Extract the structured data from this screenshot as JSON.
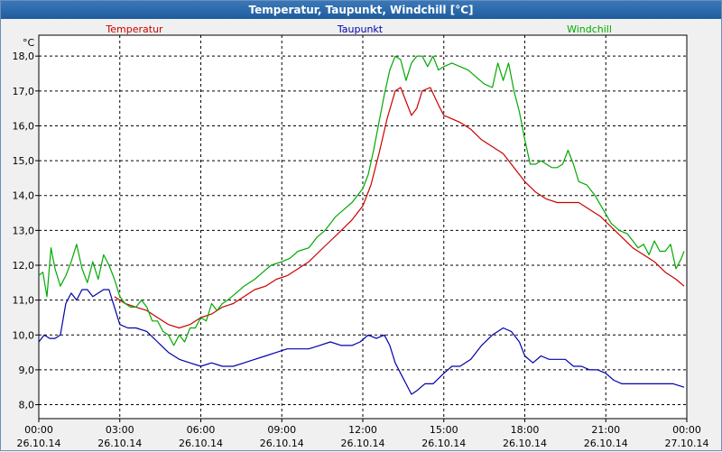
{
  "window": {
    "title": "Temperatur, Taupunkt, Windchill [°C]"
  },
  "chart_data": {
    "type": "line",
    "title": "Temperatur, Taupunkt, Windchill [°C]",
    "ylabel": "°C",
    "xlabel": "",
    "ylim": [
      7.6,
      18.6
    ],
    "xlim": [
      0,
      24
    ],
    "grid": true,
    "legend_position": "top",
    "y_ticks": [
      "8,0",
      "9,0",
      "10,0",
      "11,0",
      "12,0",
      "13,0",
      "14,0",
      "15,0",
      "16,0",
      "17,0",
      "18,0"
    ],
    "x_ticks": [
      {
        "time": "00:00",
        "date": "26.10.14"
      },
      {
        "time": "03:00",
        "date": "26.10.14"
      },
      {
        "time": "06:00",
        "date": "26.10.14"
      },
      {
        "time": "09:00",
        "date": "26.10.14"
      },
      {
        "time": "12:00",
        "date": "26.10.14"
      },
      {
        "time": "15:00",
        "date": "26.10.14"
      },
      {
        "time": "18:00",
        "date": "26.10.14"
      },
      {
        "time": "21:00",
        "date": "26.10.14"
      },
      {
        "time": "00:00",
        "date": "27.10.14"
      }
    ],
    "series": [
      {
        "name": "Temperatur",
        "color": "#cc0000",
        "points": [
          [
            2.8,
            11.1
          ],
          [
            3.2,
            10.9
          ],
          [
            3.6,
            10.8
          ],
          [
            4.0,
            10.7
          ],
          [
            4.4,
            10.5
          ],
          [
            4.8,
            10.3
          ],
          [
            5.2,
            10.2
          ],
          [
            5.6,
            10.3
          ],
          [
            6.0,
            10.5
          ],
          [
            6.4,
            10.6
          ],
          [
            6.8,
            10.8
          ],
          [
            7.2,
            10.9
          ],
          [
            7.6,
            11.1
          ],
          [
            8.0,
            11.3
          ],
          [
            8.4,
            11.4
          ],
          [
            8.8,
            11.6
          ],
          [
            9.2,
            11.7
          ],
          [
            9.6,
            11.9
          ],
          [
            10.0,
            12.1
          ],
          [
            10.4,
            12.4
          ],
          [
            10.8,
            12.7
          ],
          [
            11.2,
            13.0
          ],
          [
            11.6,
            13.3
          ],
          [
            12.0,
            13.7
          ],
          [
            12.3,
            14.3
          ],
          [
            12.6,
            15.2
          ],
          [
            12.9,
            16.2
          ],
          [
            13.2,
            17.0
          ],
          [
            13.4,
            17.1
          ],
          [
            13.6,
            16.7
          ],
          [
            13.8,
            16.3
          ],
          [
            14.0,
            16.5
          ],
          [
            14.2,
            17.0
          ],
          [
            14.5,
            17.1
          ],
          [
            14.8,
            16.6
          ],
          [
            15.0,
            16.3
          ],
          [
            15.3,
            16.2
          ],
          [
            15.6,
            16.1
          ],
          [
            16.0,
            15.9
          ],
          [
            16.4,
            15.6
          ],
          [
            16.8,
            15.4
          ],
          [
            17.2,
            15.2
          ],
          [
            17.6,
            14.8
          ],
          [
            18.0,
            14.4
          ],
          [
            18.4,
            14.1
          ],
          [
            18.8,
            13.9
          ],
          [
            19.2,
            13.8
          ],
          [
            19.6,
            13.8
          ],
          [
            20.0,
            13.8
          ],
          [
            20.4,
            13.6
          ],
          [
            20.8,
            13.4
          ],
          [
            21.2,
            13.1
          ],
          [
            21.6,
            12.8
          ],
          [
            22.0,
            12.5
          ],
          [
            22.4,
            12.3
          ],
          [
            22.8,
            12.1
          ],
          [
            23.2,
            11.8
          ],
          [
            23.6,
            11.6
          ],
          [
            23.9,
            11.4
          ]
        ]
      },
      {
        "name": "Taupunkt",
        "color": "#0000aa",
        "points": [
          [
            0.0,
            9.8
          ],
          [
            0.2,
            10.0
          ],
          [
            0.4,
            9.9
          ],
          [
            0.6,
            9.9
          ],
          [
            0.8,
            10.0
          ],
          [
            1.0,
            10.9
          ],
          [
            1.2,
            11.2
          ],
          [
            1.4,
            11.0
          ],
          [
            1.6,
            11.3
          ],
          [
            1.8,
            11.3
          ],
          [
            2.0,
            11.1
          ],
          [
            2.2,
            11.2
          ],
          [
            2.4,
            11.3
          ],
          [
            2.6,
            11.3
          ],
          [
            2.8,
            10.8
          ],
          [
            3.0,
            10.3
          ],
          [
            3.3,
            10.2
          ],
          [
            3.6,
            10.2
          ],
          [
            4.0,
            10.1
          ],
          [
            4.4,
            9.8
          ],
          [
            4.8,
            9.5
          ],
          [
            5.2,
            9.3
          ],
          [
            5.6,
            9.2
          ],
          [
            6.0,
            9.1
          ],
          [
            6.4,
            9.2
          ],
          [
            6.8,
            9.1
          ],
          [
            7.2,
            9.1
          ],
          [
            7.6,
            9.2
          ],
          [
            8.0,
            9.3
          ],
          [
            8.4,
            9.4
          ],
          [
            8.8,
            9.5
          ],
          [
            9.2,
            9.6
          ],
          [
            9.6,
            9.6
          ],
          [
            10.0,
            9.6
          ],
          [
            10.4,
            9.7
          ],
          [
            10.8,
            9.8
          ],
          [
            11.2,
            9.7
          ],
          [
            11.6,
            9.7
          ],
          [
            11.9,
            9.8
          ],
          [
            12.2,
            10.0
          ],
          [
            12.5,
            9.9
          ],
          [
            12.8,
            10.0
          ],
          [
            13.0,
            9.7
          ],
          [
            13.2,
            9.2
          ],
          [
            13.4,
            8.9
          ],
          [
            13.6,
            8.6
          ],
          [
            13.8,
            8.3
          ],
          [
            14.0,
            8.4
          ],
          [
            14.3,
            8.6
          ],
          [
            14.6,
            8.6
          ],
          [
            15.0,
            8.9
          ],
          [
            15.3,
            9.1
          ],
          [
            15.6,
            9.1
          ],
          [
            16.0,
            9.3
          ],
          [
            16.4,
            9.7
          ],
          [
            16.8,
            10.0
          ],
          [
            17.2,
            10.2
          ],
          [
            17.5,
            10.1
          ],
          [
            17.8,
            9.8
          ],
          [
            18.0,
            9.4
          ],
          [
            18.3,
            9.2
          ],
          [
            18.6,
            9.4
          ],
          [
            18.9,
            9.3
          ],
          [
            19.2,
            9.3
          ],
          [
            19.5,
            9.3
          ],
          [
            19.8,
            9.1
          ],
          [
            20.1,
            9.1
          ],
          [
            20.4,
            9.0
          ],
          [
            20.7,
            9.0
          ],
          [
            21.0,
            8.9
          ],
          [
            21.3,
            8.7
          ],
          [
            21.6,
            8.6
          ],
          [
            22.0,
            8.6
          ],
          [
            22.5,
            8.6
          ],
          [
            23.0,
            8.6
          ],
          [
            23.5,
            8.6
          ],
          [
            23.9,
            8.5
          ]
        ]
      },
      {
        "name": "Windchill",
        "color": "#00aa00",
        "points": [
          [
            0.0,
            11.7
          ],
          [
            0.15,
            11.8
          ],
          [
            0.3,
            11.1
          ],
          [
            0.45,
            12.5
          ],
          [
            0.6,
            11.9
          ],
          [
            0.8,
            11.4
          ],
          [
            1.0,
            11.7
          ],
          [
            1.2,
            12.1
          ],
          [
            1.4,
            12.6
          ],
          [
            1.6,
            11.9
          ],
          [
            1.8,
            11.5
          ],
          [
            2.0,
            12.1
          ],
          [
            2.2,
            11.6
          ],
          [
            2.4,
            12.3
          ],
          [
            2.6,
            12.0
          ],
          [
            2.8,
            11.6
          ],
          [
            3.0,
            11.1
          ],
          [
            3.2,
            10.9
          ],
          [
            3.4,
            10.8
          ],
          [
            3.6,
            10.8
          ],
          [
            3.8,
            11.0
          ],
          [
            4.0,
            10.8
          ],
          [
            4.2,
            10.4
          ],
          [
            4.4,
            10.4
          ],
          [
            4.6,
            10.1
          ],
          [
            4.8,
            10.0
          ],
          [
            5.0,
            9.7
          ],
          [
            5.2,
            10.0
          ],
          [
            5.4,
            9.8
          ],
          [
            5.6,
            10.2
          ],
          [
            5.8,
            10.2
          ],
          [
            6.0,
            10.5
          ],
          [
            6.2,
            10.4
          ],
          [
            6.4,
            10.9
          ],
          [
            6.6,
            10.7
          ],
          [
            6.8,
            10.9
          ],
          [
            7.0,
            11.0
          ],
          [
            7.3,
            11.2
          ],
          [
            7.6,
            11.4
          ],
          [
            8.0,
            11.6
          ],
          [
            8.3,
            11.8
          ],
          [
            8.6,
            12.0
          ],
          [
            9.0,
            12.1
          ],
          [
            9.3,
            12.2
          ],
          [
            9.6,
            12.4
          ],
          [
            10.0,
            12.5
          ],
          [
            10.3,
            12.8
          ],
          [
            10.6,
            13.0
          ],
          [
            11.0,
            13.4
          ],
          [
            11.3,
            13.6
          ],
          [
            11.6,
            13.8
          ],
          [
            12.0,
            14.2
          ],
          [
            12.2,
            14.6
          ],
          [
            12.4,
            15.3
          ],
          [
            12.6,
            16.1
          ],
          [
            12.8,
            16.9
          ],
          [
            13.0,
            17.6
          ],
          [
            13.2,
            18.0
          ],
          [
            13.4,
            17.9
          ],
          [
            13.6,
            17.3
          ],
          [
            13.8,
            17.8
          ],
          [
            14.0,
            18.0
          ],
          [
            14.2,
            18.0
          ],
          [
            14.4,
            17.7
          ],
          [
            14.6,
            18.0
          ],
          [
            14.8,
            17.6
          ],
          [
            15.0,
            17.7
          ],
          [
            15.3,
            17.8
          ],
          [
            15.6,
            17.7
          ],
          [
            15.9,
            17.6
          ],
          [
            16.2,
            17.4
          ],
          [
            16.5,
            17.2
          ],
          [
            16.8,
            17.1
          ],
          [
            17.0,
            17.8
          ],
          [
            17.2,
            17.3
          ],
          [
            17.4,
            17.8
          ],
          [
            17.6,
            17.0
          ],
          [
            17.8,
            16.4
          ],
          [
            18.0,
            15.6
          ],
          [
            18.2,
            14.9
          ],
          [
            18.4,
            14.9
          ],
          [
            18.6,
            15.0
          ],
          [
            18.8,
            14.9
          ],
          [
            19.0,
            14.8
          ],
          [
            19.2,
            14.8
          ],
          [
            19.4,
            14.9
          ],
          [
            19.6,
            15.3
          ],
          [
            19.8,
            14.9
          ],
          [
            20.0,
            14.4
          ],
          [
            20.3,
            14.3
          ],
          [
            20.6,
            14.0
          ],
          [
            20.9,
            13.6
          ],
          [
            21.2,
            13.2
          ],
          [
            21.5,
            13.0
          ],
          [
            21.8,
            12.9
          ],
          [
            22.0,
            12.7
          ],
          [
            22.2,
            12.5
          ],
          [
            22.4,
            12.6
          ],
          [
            22.6,
            12.3
          ],
          [
            22.8,
            12.7
          ],
          [
            23.0,
            12.4
          ],
          [
            23.2,
            12.4
          ],
          [
            23.4,
            12.6
          ],
          [
            23.6,
            11.9
          ],
          [
            23.8,
            12.2
          ],
          [
            23.9,
            12.4
          ]
        ]
      }
    ]
  }
}
